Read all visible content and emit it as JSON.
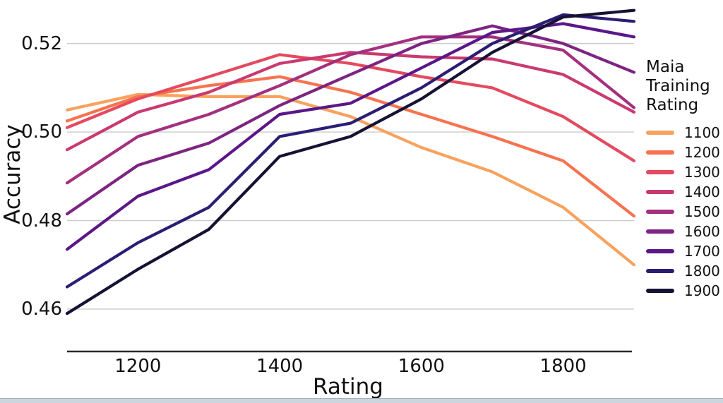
{
  "chart_data": {
    "type": "line",
    "x": [
      1100,
      1200,
      1300,
      1400,
      1500,
      1600,
      1700,
      1800,
      1900
    ],
    "xlabel": "Rating",
    "ylabel": "Accuracy",
    "x_tick_values": [
      1200,
      1400,
      1600,
      1800
    ],
    "x_tick_labels": [
      "1200",
      "1400",
      "1600",
      "1800"
    ],
    "y_tick_values": [
      0.52,
      0.5,
      0.48,
      0.46
    ],
    "y_tick_labels": [
      "0.52",
      "0.50",
      "0.48",
      "0.46"
    ],
    "xlim": [
      1100,
      1900
    ],
    "ylim": [
      0.4505,
      0.5298
    ],
    "grid": "horizontal",
    "legend_position": "right",
    "legend_title_lines": [
      "Maia",
      "Training",
      "Rating"
    ],
    "series": [
      {
        "name": "1100",
        "color": "#f8a25e",
        "values": [
          0.505,
          0.5085,
          0.508,
          0.508,
          0.5035,
          0.4965,
          0.491,
          0.483,
          0.47
        ]
      },
      {
        "name": "1200",
        "color": "#f7734f",
        "values": [
          0.5025,
          0.508,
          0.5105,
          0.5125,
          0.509,
          0.504,
          0.499,
          0.4935,
          0.481
        ]
      },
      {
        "name": "1300",
        "color": "#e44a5f",
        "values": [
          0.501,
          0.5075,
          0.5125,
          0.5175,
          0.5155,
          0.5125,
          0.51,
          0.5035,
          0.4935
        ]
      },
      {
        "name": "1400",
        "color": "#c93a70",
        "values": [
          0.496,
          0.5045,
          0.509,
          0.5155,
          0.518,
          0.517,
          0.5165,
          0.513,
          0.5045
        ]
      },
      {
        "name": "1500",
        "color": "#a3307e",
        "values": [
          0.4885,
          0.499,
          0.504,
          0.5105,
          0.5175,
          0.5215,
          0.5215,
          0.5185,
          0.5055
        ]
      },
      {
        "name": "1600",
        "color": "#7d2482",
        "values": [
          0.4815,
          0.4925,
          0.4975,
          0.506,
          0.513,
          0.52,
          0.524,
          0.52,
          0.5135
        ]
      },
      {
        "name": "1700",
        "color": "#5b1789",
        "values": [
          0.4735,
          0.4855,
          0.4915,
          0.504,
          0.5065,
          0.5145,
          0.5225,
          0.5245,
          0.5215
        ]
      },
      {
        "name": "1800",
        "color": "#2c1d74",
        "values": [
          0.465,
          0.475,
          0.483,
          0.499,
          0.502,
          0.51,
          0.52,
          0.5265,
          0.525
        ]
      },
      {
        "name": "1900",
        "color": "#151233",
        "values": [
          0.459,
          0.469,
          0.478,
          0.4945,
          0.499,
          0.5075,
          0.518,
          0.526,
          0.5275
        ]
      }
    ]
  },
  "window": {
    "bottom_edge_color": "#ccd4dd"
  }
}
